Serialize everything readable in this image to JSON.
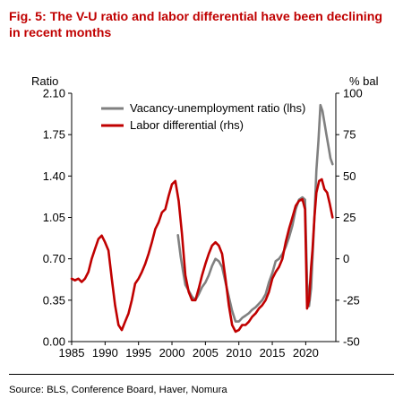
{
  "figure": {
    "title": "Fig. 5: The V-U ratio and labor differential have been declining in recent months",
    "source": "Source: BLS, Conference Board, Haver, Nomura"
  },
  "chart_data": {
    "type": "line",
    "left_axis_label": "Ratio",
    "right_axis_label": "% bal",
    "x_ticks": [
      "1985",
      "1990",
      "1995",
      "2000",
      "2005",
      "2010",
      "2015",
      "2020"
    ],
    "left_ticks": [
      "2.10",
      "1.75",
      "1.40",
      "1.05",
      "0.70",
      "0.35",
      "0.00"
    ],
    "right_ticks": [
      "100",
      "75",
      "50",
      "25",
      "0",
      "-25",
      "-50"
    ],
    "xlim": [
      1985,
      2024.5
    ],
    "ylim_left": [
      0,
      2.1
    ],
    "ylim_right": [
      -50,
      100
    ],
    "grid": false,
    "legend_position": "top-center",
    "series": [
      {
        "name": "Vacancy-unemployment ratio (lhs)",
        "axis": "left",
        "color": "#808080",
        "points": [
          [
            2000.9,
            0.9
          ],
          [
            2001.3,
            0.72
          ],
          [
            2001.7,
            0.58
          ],
          [
            2002.0,
            0.48
          ],
          [
            2002.5,
            0.43
          ],
          [
            2003.0,
            0.38
          ],
          [
            2003.5,
            0.35
          ],
          [
            2004.0,
            0.4
          ],
          [
            2004.5,
            0.46
          ],
          [
            2005.0,
            0.5
          ],
          [
            2005.5,
            0.56
          ],
          [
            2006.0,
            0.64
          ],
          [
            2006.5,
            0.7
          ],
          [
            2007.0,
            0.68
          ],
          [
            2007.5,
            0.63
          ],
          [
            2008.0,
            0.5
          ],
          [
            2008.5,
            0.38
          ],
          [
            2009.0,
            0.26
          ],
          [
            2009.5,
            0.17
          ],
          [
            2010.0,
            0.17
          ],
          [
            2010.5,
            0.2
          ],
          [
            2011.0,
            0.22
          ],
          [
            2011.5,
            0.24
          ],
          [
            2012.0,
            0.27
          ],
          [
            2012.5,
            0.29
          ],
          [
            2013.0,
            0.32
          ],
          [
            2013.5,
            0.35
          ],
          [
            2014.0,
            0.4
          ],
          [
            2014.5,
            0.5
          ],
          [
            2015.0,
            0.58
          ],
          [
            2015.5,
            0.68
          ],
          [
            2016.0,
            0.7
          ],
          [
            2016.5,
            0.74
          ],
          [
            2017.0,
            0.8
          ],
          [
            2017.5,
            0.88
          ],
          [
            2018.0,
            0.98
          ],
          [
            2018.5,
            1.12
          ],
          [
            2019.0,
            1.2
          ],
          [
            2019.5,
            1.22
          ],
          [
            2019.9,
            1.2
          ],
          [
            2020.2,
            0.5
          ],
          [
            2020.5,
            0.3
          ],
          [
            2020.8,
            0.45
          ],
          [
            2021.0,
            0.7
          ],
          [
            2021.3,
            1.05
          ],
          [
            2021.6,
            1.45
          ],
          [
            2021.9,
            1.7
          ],
          [
            2022.2,
            2.0
          ],
          [
            2022.5,
            1.95
          ],
          [
            2022.8,
            1.85
          ],
          [
            2023.1,
            1.75
          ],
          [
            2023.4,
            1.65
          ],
          [
            2023.7,
            1.55
          ],
          [
            2024.0,
            1.5
          ]
        ]
      },
      {
        "name": "Labor differential (rhs)",
        "axis": "right",
        "color": "#c00000",
        "points": [
          [
            1985.0,
            -12
          ],
          [
            1985.5,
            -13
          ],
          [
            1986.0,
            -12
          ],
          [
            1986.5,
            -14
          ],
          [
            1987.0,
            -12
          ],
          [
            1987.5,
            -8
          ],
          [
            1988.0,
            0
          ],
          [
            1988.5,
            6
          ],
          [
            1989.0,
            12
          ],
          [
            1989.5,
            14
          ],
          [
            1990.0,
            10
          ],
          [
            1990.5,
            5
          ],
          [
            1991.0,
            -12
          ],
          [
            1991.5,
            -28
          ],
          [
            1992.0,
            -40
          ],
          [
            1992.5,
            -43
          ],
          [
            1993.0,
            -38
          ],
          [
            1993.5,
            -33
          ],
          [
            1994.0,
            -25
          ],
          [
            1994.5,
            -15
          ],
          [
            1995.0,
            -12
          ],
          [
            1995.5,
            -8
          ],
          [
            1996.0,
            -3
          ],
          [
            1996.5,
            3
          ],
          [
            1997.0,
            10
          ],
          [
            1997.5,
            18
          ],
          [
            1998.0,
            22
          ],
          [
            1998.5,
            28
          ],
          [
            1999.0,
            30
          ],
          [
            1999.5,
            38
          ],
          [
            2000.0,
            45
          ],
          [
            2000.5,
            47
          ],
          [
            2001.0,
            35
          ],
          [
            2001.5,
            15
          ],
          [
            2002.0,
            -10
          ],
          [
            2002.5,
            -20
          ],
          [
            2003.0,
            -25
          ],
          [
            2003.5,
            -25
          ],
          [
            2004.0,
            -18
          ],
          [
            2004.5,
            -10
          ],
          [
            2005.0,
            -3
          ],
          [
            2005.5,
            3
          ],
          [
            2006.0,
            8
          ],
          [
            2006.5,
            10
          ],
          [
            2007.0,
            8
          ],
          [
            2007.5,
            3
          ],
          [
            2008.0,
            -12
          ],
          [
            2008.5,
            -28
          ],
          [
            2009.0,
            -40
          ],
          [
            2009.5,
            -44
          ],
          [
            2010.0,
            -43
          ],
          [
            2010.5,
            -40
          ],
          [
            2011.0,
            -40
          ],
          [
            2011.5,
            -38
          ],
          [
            2012.0,
            -35
          ],
          [
            2012.5,
            -33
          ],
          [
            2013.0,
            -30
          ],
          [
            2013.5,
            -28
          ],
          [
            2014.0,
            -25
          ],
          [
            2014.5,
            -20
          ],
          [
            2015.0,
            -12
          ],
          [
            2015.5,
            -8
          ],
          [
            2016.0,
            -5
          ],
          [
            2016.5,
            0
          ],
          [
            2017.0,
            10
          ],
          [
            2017.5,
            18
          ],
          [
            2018.0,
            25
          ],
          [
            2018.5,
            32
          ],
          [
            2019.0,
            35
          ],
          [
            2019.5,
            36
          ],
          [
            2019.9,
            30
          ],
          [
            2020.2,
            -30
          ],
          [
            2020.5,
            -25
          ],
          [
            2020.8,
            -5
          ],
          [
            2021.0,
            5
          ],
          [
            2021.3,
            25
          ],
          [
            2021.6,
            40
          ],
          [
            2022.0,
            47
          ],
          [
            2022.4,
            48
          ],
          [
            2022.8,
            42
          ],
          [
            2023.2,
            40
          ],
          [
            2023.6,
            33
          ],
          [
            2024.0,
            25
          ]
        ]
      }
    ]
  }
}
